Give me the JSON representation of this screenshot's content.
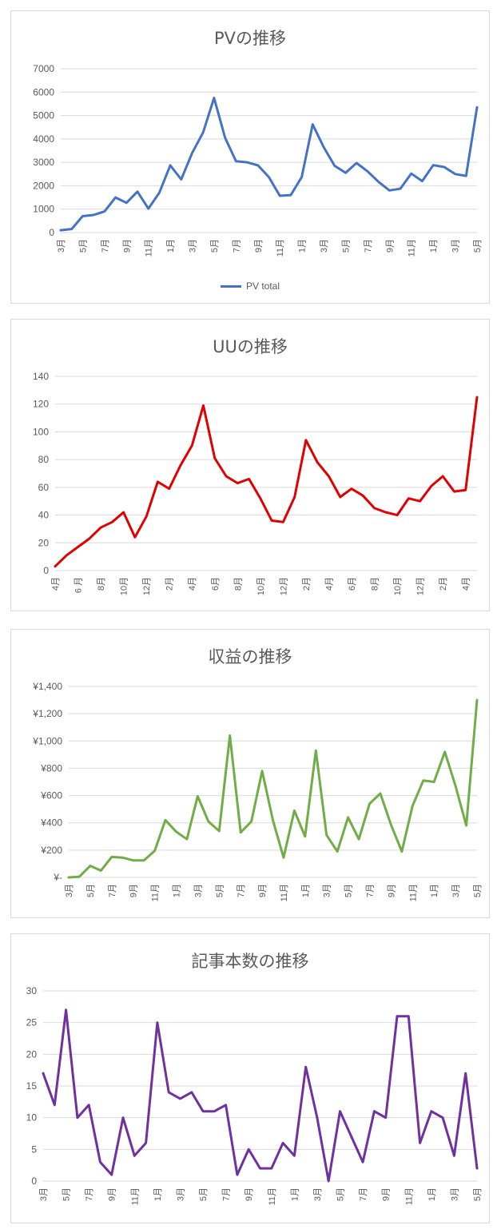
{
  "chart_data": [
    {
      "type": "line",
      "title": "PVの推移",
      "color": "#4472c4",
      "legend": "PV total",
      "legend_position": "bottom",
      "ylim": [
        0,
        7000
      ],
      "yticks": [
        "0",
        "1000",
        "2000",
        "3000",
        "4000",
        "5000",
        "6000",
        "7000"
      ],
      "grid": true,
      "xlabels": [
        "3月",
        "5月",
        "7月",
        "9月",
        "11月",
        "1月",
        "3月",
        "5月",
        "7月",
        "9月",
        "11月",
        "1月",
        "3月",
        "5月",
        "7月",
        "9月",
        "11月",
        "1月",
        "3月",
        "5月"
      ],
      "series": [
        {
          "name": "PV total",
          "values": [
            100,
            150,
            700,
            750,
            900,
            1500,
            1270,
            1750,
            1020,
            1700,
            2870,
            2270,
            3400,
            4280,
            5750,
            4050,
            3050,
            3000,
            2870,
            2370,
            1570,
            1600,
            2370,
            4620,
            3650,
            2850,
            2550,
            2970,
            2620,
            2170,
            1800,
            1870,
            2520,
            2200,
            2880,
            2800,
            2500,
            2420,
            5350
          ]
        }
      ]
    },
    {
      "type": "line",
      "title": "UUの推移",
      "color": "#e00000",
      "ylim": [
        0,
        140
      ],
      "yticks": [
        "0",
        "20",
        "40",
        "60",
        "80",
        "100",
        "120",
        "140"
      ],
      "grid": true,
      "xlabels": [
        "4月",
        "6 月",
        "8月",
        "10月",
        "12月",
        "2月",
        "4月",
        "6月",
        "8月",
        "10月",
        "12月",
        "2月",
        "4月",
        "6月",
        "8月",
        "10月",
        "12月",
        "2月",
        "4月"
      ],
      "series": [
        {
          "name": "",
          "values": [
            3,
            11,
            17,
            23,
            31,
            35,
            42,
            24,
            39,
            64,
            59,
            76,
            90,
            119,
            81,
            68,
            63,
            66,
            52,
            36,
            35,
            53,
            94,
            78,
            68,
            53,
            59,
            54,
            45,
            42,
            40,
            52,
            50,
            61,
            68,
            57,
            58,
            125
          ]
        }
      ]
    },
    {
      "type": "line",
      "title": "収益の推移",
      "color": "#70ad47",
      "ylim": [
        0,
        1400
      ],
      "yticks": [
        "¥-",
        "¥200",
        "¥400",
        "¥600",
        "¥800",
        "¥1,000",
        "¥1,200",
        "¥1,400"
      ],
      "grid": true,
      "xlabels": [
        "3月",
        "5月",
        "7月",
        "9月",
        "11月",
        "1月",
        "3月",
        "5月",
        "7月",
        "9月",
        "11月",
        "1月",
        "3月",
        "5月",
        "7月",
        "9月",
        "11月",
        "1月",
        "3月",
        "5月"
      ],
      "series": [
        {
          "name": "",
          "values": [
            0,
            5,
            85,
            50,
            150,
            145,
            125,
            125,
            195,
            420,
            335,
            280,
            595,
            410,
            340,
            1040,
            330,
            410,
            780,
            420,
            145,
            490,
            300,
            930,
            310,
            190,
            440,
            280,
            540,
            615,
            385,
            190,
            525,
            710,
            700,
            920,
            670,
            380,
            1300
          ]
        }
      ]
    },
    {
      "type": "line",
      "title": "記事本数の推移",
      "color": "#7030a0",
      "ylim": [
        0,
        30
      ],
      "yticks": [
        "0",
        "5",
        "10",
        "15",
        "20",
        "25",
        "30"
      ],
      "grid": true,
      "xlabels": [
        "3月",
        "5月",
        "7月",
        "9月",
        "11月",
        "1月",
        "3月",
        "5月",
        "7月",
        "9月",
        "11月",
        "1月",
        "3月",
        "5月",
        "7月",
        "9月",
        "11月",
        "1月",
        "3月",
        "5月"
      ],
      "series": [
        {
          "name": "",
          "values": [
            17,
            12,
            27,
            10,
            12,
            3,
            1,
            10,
            4,
            6,
            25,
            14,
            13,
            14,
            11,
            11,
            12,
            1,
            5,
            2,
            2,
            6,
            4,
            18,
            10,
            0,
            11,
            7,
            3,
            11,
            10,
            26,
            26,
            6,
            11,
            10,
            4,
            17,
            2
          ]
        }
      ]
    }
  ]
}
